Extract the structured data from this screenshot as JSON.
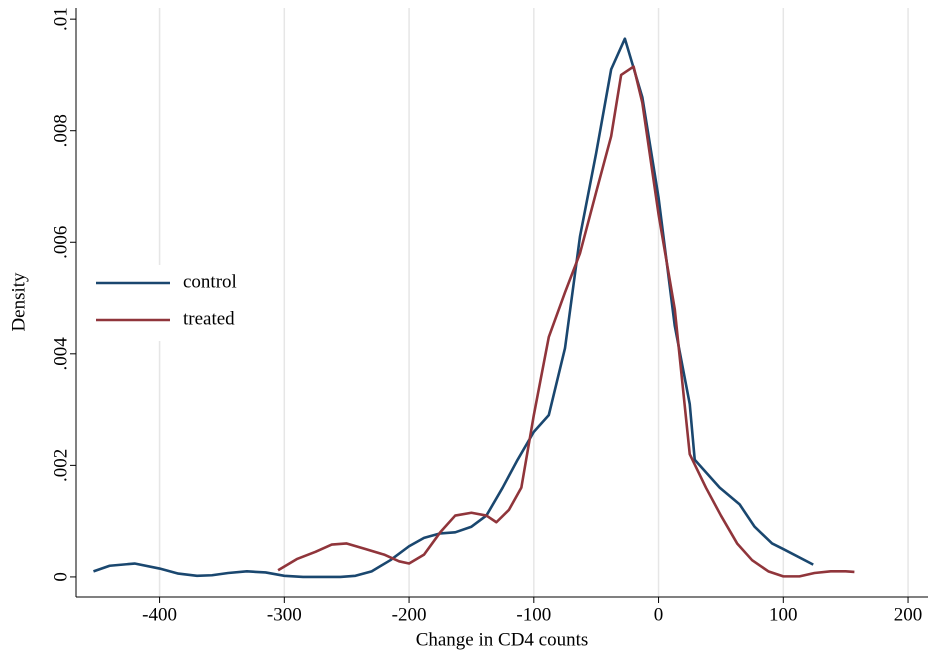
{
  "chart_data": {
    "type": "line",
    "xlabel": "Change in CD4 counts",
    "ylabel": "Density",
    "xlim": [
      -467,
      216
    ],
    "ylim": [
      -0.00036,
      0.0102
    ],
    "xticks": [
      -400,
      -300,
      -200,
      -100,
      0,
      100,
      200
    ],
    "yticks": [
      0,
      {
        "value": 0.002,
        "label": ".002"
      },
      {
        "value": 0.004,
        "label": ".004"
      },
      {
        "value": 0.006,
        "label": ".006"
      },
      {
        "value": 0.008,
        "label": ".008"
      },
      {
        "value": 0.01,
        "label": ".01"
      }
    ],
    "xgrid": true,
    "legend": "west",
    "series": [
      {
        "name": "control",
        "color": "#1a476f",
        "x": [
          -453,
          -440,
          -420,
          -400,
          -385,
          -370,
          -358,
          -345,
          -330,
          -315,
          -300,
          -285,
          -255,
          -243,
          -230,
          -215,
          -200,
          -188,
          -175,
          -163,
          -150,
          -138,
          -125,
          -113,
          -100,
          -88,
          -75,
          -63,
          -50,
          -38,
          -27,
          -13,
          0,
          13,
          25,
          29,
          49,
          65,
          77,
          91,
          100,
          124
        ],
        "values": [
          0.0001,
          0.0002,
          0.00024,
          0.00015,
          6e-05,
          2e-05,
          3e-05,
          7e-05,
          0.0001,
          8e-05,
          2e-05,
          0,
          0,
          2e-05,
          0.0001,
          0.0003,
          0.00055,
          0.0007,
          0.00078,
          0.0008,
          0.0009,
          0.0011,
          0.0016,
          0.0021,
          0.0026,
          0.0029,
          0.0041,
          0.0061,
          0.0076,
          0.0091,
          0.00965,
          0.0086,
          0.0068,
          0.0045,
          0.0031,
          0.0021,
          0.0016,
          0.0013,
          0.0009,
          0.0006,
          0.0005,
          0.00022
        ]
      },
      {
        "name": "treated",
        "color": "#90353b",
        "x": [
          -305,
          -290,
          -275,
          -262,
          -250,
          -235,
          -220,
          -208,
          -200,
          -188,
          -175,
          -163,
          -150,
          -138,
          -130,
          -120,
          -110,
          -100,
          -88,
          -75,
          -63,
          -50,
          -38,
          -30,
          -20,
          -13,
          0,
          13,
          25,
          38,
          50,
          63,
          75,
          88,
          100,
          113,
          125,
          138,
          150,
          157
        ],
        "values": [
          0.00012,
          0.00032,
          0.00045,
          0.00058,
          0.0006,
          0.0005,
          0.0004,
          0.00028,
          0.00024,
          0.0004,
          0.0008,
          0.0011,
          0.00115,
          0.0011,
          0.00098,
          0.0012,
          0.0016,
          0.0029,
          0.0043,
          0.0051,
          0.0058,
          0.0069,
          0.0079,
          0.009,
          0.00915,
          0.0085,
          0.0065,
          0.0048,
          0.0022,
          0.0016,
          0.0011,
          0.0006,
          0.0003,
          0.0001,
          1e-05,
          1e-05,
          7e-05,
          0.0001,
          0.0001,
          9e-05
        ]
      }
    ]
  }
}
